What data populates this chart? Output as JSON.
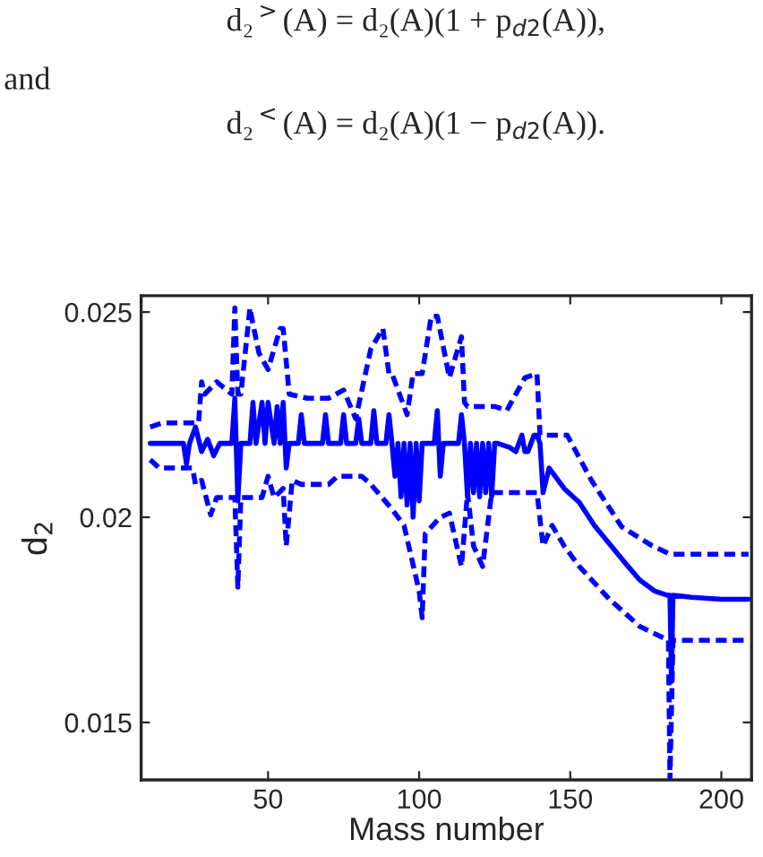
{
  "chart_data": {
    "type": "line",
    "xlabel": "Mass number",
    "ylabel": "d$_{2}$",
    "annotations": [
      "d₂$^{>}$(A) = d₂(A)(1 + p$_{d2}$(A)),",
      "and",
      "d₂$^{<}$(A) = d₂(A)(1 − p$_{d2}$(A))."
    ],
    "xlim": [
      8,
      210
    ],
    "ylim": [
      0.0136,
      0.0254
    ],
    "xticks": [
      50,
      100,
      150,
      200
    ],
    "yticks": [
      0.015,
      0.02,
      0.025
    ],
    "grid": false,
    "marker": "none",
    "series": [
      {
        "color": "#0000ff",
        "line_style": "solid",
        "x": [
          11,
          22,
          23,
          24,
          26,
          28,
          30,
          32,
          34,
          36,
          38,
          39,
          40,
          41,
          44,
          45,
          46,
          48,
          49,
          50,
          52,
          53,
          54,
          55,
          56,
          57,
          60,
          61,
          62,
          68,
          69,
          70,
          74,
          75,
          76,
          79,
          80,
          81,
          84,
          85,
          86,
          89,
          90,
          91,
          92,
          93,
          94,
          95,
          96,
          97,
          98,
          99,
          100,
          101,
          102,
          105,
          106,
          107,
          108,
          113,
          114,
          115,
          116,
          117,
          118,
          119,
          120,
          121,
          122,
          123,
          124,
          125,
          126,
          130,
          132,
          134,
          135,
          136,
          138,
          139,
          140,
          141,
          143,
          148,
          153,
          158,
          163,
          168,
          173,
          178,
          182,
          183,
          183.5,
          184,
          190,
          200,
          209
        ],
        "values": [
          0.0218,
          0.0218,
          0.0213,
          0.0218,
          0.0222,
          0.0216,
          0.0219,
          0.0215,
          0.0218,
          0.0218,
          0.0218,
          0.0229,
          0.0204,
          0.0218,
          0.0218,
          0.0228,
          0.0218,
          0.0228,
          0.0218,
          0.0228,
          0.0218,
          0.0227,
          0.0218,
          0.0228,
          0.0212,
          0.0218,
          0.0218,
          0.0225,
          0.0218,
          0.0218,
          0.0225,
          0.0218,
          0.0218,
          0.0225,
          0.0218,
          0.0218,
          0.0224,
          0.0218,
          0.0218,
          0.0226,
          0.0218,
          0.0218,
          0.0225,
          0.0218,
          0.021,
          0.0218,
          0.0205,
          0.0218,
          0.0203,
          0.0218,
          0.02,
          0.0218,
          0.0204,
          0.0218,
          0.0218,
          0.0218,
          0.0226,
          0.021,
          0.0218,
          0.0218,
          0.0225,
          0.0218,
          0.0205,
          0.0218,
          0.0206,
          0.0218,
          0.0205,
          0.0218,
          0.0206,
          0.0218,
          0.0205,
          0.0218,
          0.0218,
          0.0217,
          0.0216,
          0.022,
          0.0216,
          0.0216,
          0.022,
          0.022,
          0.0218,
          0.0206,
          0.0212,
          0.0207,
          0.02036,
          0.0198,
          0.01935,
          0.0189,
          0.01847,
          0.0182,
          0.0181,
          0.0181,
          0.016,
          0.0181,
          0.01805,
          0.018,
          0.018
        ]
      },
      {
        "color": "#0000ff",
        "line_style": "dashed",
        "x": [
          11,
          15,
          27,
          28,
          29,
          33,
          38,
          39,
          40,
          41,
          44,
          45,
          47,
          50,
          54,
          55,
          57,
          63,
          70,
          75,
          79,
          84,
          88,
          90,
          91,
          96,
          98,
          101,
          104,
          106,
          110,
          114,
          115,
          116,
          125,
          129,
          135,
          139,
          140,
          149,
          157,
          167,
          177,
          183,
          209
        ],
        "values": [
          0.0222,
          0.0223,
          0.0223,
          0.0233,
          0.023,
          0.0233,
          0.023,
          0.0251,
          0.023,
          0.023,
          0.0251,
          0.0247,
          0.024,
          0.0236,
          0.0246,
          0.0246,
          0.023,
          0.0229,
          0.0229,
          0.0231,
          0.0224,
          0.0241,
          0.0246,
          0.0235,
          0.0235,
          0.0225,
          0.0235,
          0.0235,
          0.0249,
          0.0249,
          0.0234,
          0.0244,
          0.0228,
          0.0227,
          0.0227,
          0.0226,
          0.0234,
          0.0235,
          0.022,
          0.022,
          0.0209,
          0.01977,
          0.01931,
          0.0191,
          0.0191
        ]
      },
      {
        "color": "#0000ff",
        "line_style": "dashed",
        "x": [
          11,
          14,
          25,
          26,
          28,
          31,
          33,
          39,
          40,
          41,
          48,
          50,
          52,
          55,
          56,
          58,
          61,
          70,
          73,
          81,
          84,
          91,
          95,
          100,
          101,
          102,
          107,
          110,
          114,
          116,
          118,
          121,
          124,
          132,
          139,
          141,
          144,
          148,
          153,
          163,
          173,
          182.5,
          183,
          184,
          209
        ],
        "values": [
          0.0214,
          0.0212,
          0.0212,
          0.0208,
          0.0209,
          0.02006,
          0.02048,
          0.02048,
          0.0183,
          0.02048,
          0.02048,
          0.021,
          0.02048,
          0.0207,
          0.0193,
          0.0209,
          0.0208,
          0.0208,
          0.021,
          0.021,
          0.0208,
          0.0202,
          0.0198,
          0.0182,
          0.01755,
          0.0196,
          0.02,
          0.0201,
          0.0188,
          0.0206,
          0.0193,
          0.0188,
          0.0206,
          0.0206,
          0.0206,
          0.0193,
          0.0198,
          0.0193,
          0.0188,
          0.018,
          0.01734,
          0.017,
          0.0136,
          0.017,
          0.017
        ]
      }
    ]
  }
}
